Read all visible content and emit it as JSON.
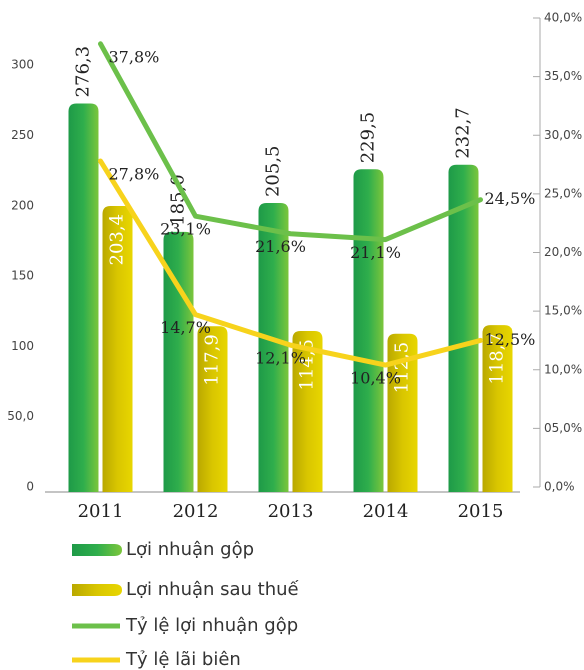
{
  "chart_data": {
    "type": "bar",
    "categories": [
      "2011",
      "2012",
      "2013",
      "2014",
      "2015"
    ],
    "series": [
      {
        "name": "Lợi nhuận gộp",
        "color": "#2aa84a",
        "values": [
          276.3,
          185.0,
          205.5,
          229.5,
          232.7
        ],
        "value_labels": [
          "276,3",
          "185,0",
          "205,5",
          "229,5",
          "232,7"
        ]
      },
      {
        "name": "Lợi nhuận sau thuế",
        "color": "#d4c200",
        "values": [
          203.4,
          117.9,
          114.5,
          112.5,
          118.7
        ],
        "value_labels": [
          "203,4",
          "117,9",
          "114,5",
          "112,5",
          "118,7"
        ]
      },
      {
        "name": "Tỷ lệ lợi nhuận gộp",
        "type": "line",
        "axis": "y2",
        "color": "#6cc04a",
        "values": [
          37.8,
          23.1,
          21.6,
          21.1,
          24.5
        ],
        "value_labels": [
          "37,8%",
          "23,1%",
          "21,6%",
          "21,1%",
          "24,5%"
        ]
      },
      {
        "name": "Tỷ lệ lãi biên",
        "type": "line",
        "axis": "y2",
        "color": "#f7d31c",
        "values": [
          27.8,
          14.7,
          12.1,
          10.4,
          12.5
        ],
        "value_labels": [
          "27,8%",
          "14,7%",
          "12,1%",
          "10,4%",
          "12,5%"
        ]
      }
    ],
    "ylim": [
      0,
      320
    ],
    "yticks": [
      0,
      {
        "value": 50,
        "label": "50,0"
      },
      100,
      150,
      200,
      250,
      300
    ],
    "y2lim": [
      0,
      40
    ],
    "y2ticks": [
      {
        "value": 0,
        "label": "0,0%"
      },
      {
        "value": 5,
        "label": "05,0%"
      },
      {
        "value": 10,
        "label": "10,0%"
      },
      {
        "value": 15,
        "label": "15,0%"
      },
      {
        "value": 20,
        "label": "20,0%"
      },
      {
        "value": 25,
        "label": "25,0%"
      },
      {
        "value": 30,
        "label": "30,0%"
      },
      {
        "value": 35,
        "label": "35,0%"
      },
      {
        "value": 40,
        "label": "40,0%"
      }
    ]
  }
}
